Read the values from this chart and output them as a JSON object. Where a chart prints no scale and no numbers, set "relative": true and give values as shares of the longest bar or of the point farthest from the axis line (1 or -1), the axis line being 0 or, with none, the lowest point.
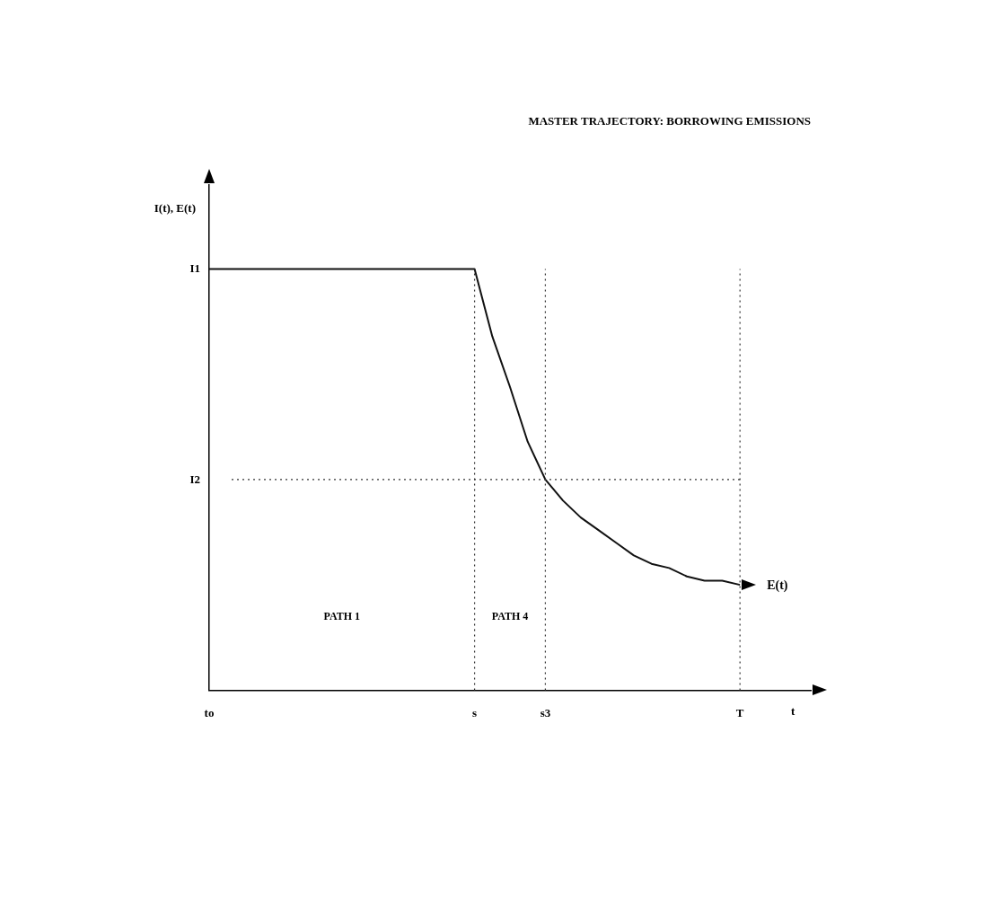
{
  "chart_data": {
    "type": "line",
    "title": "MASTER TRAJECTORY: BORROWING EMISSIONS",
    "xlabel": "t",
    "ylabel": "I(t), E(t)",
    "relative": true,
    "categories": [
      "to",
      null,
      null,
      null,
      null,
      null,
      null,
      null,
      null,
      null,
      null,
      null,
      null,
      null,
      null,
      "s",
      null,
      null,
      null,
      "s3",
      null,
      null,
      null,
      null,
      null,
      null,
      null,
      null,
      null,
      null,
      "T",
      null,
      null,
      null,
      null
    ],
    "series": [
      {
        "name": "E(t)",
        "color": "#111111",
        "values": [
          1,
          1,
          1,
          1,
          1,
          1,
          1,
          1,
          1,
          1,
          1,
          1,
          1,
          1,
          1,
          1,
          0.84,
          0.72,
          0.59,
          0.5,
          0.45,
          0.41,
          0.38,
          0.35,
          0.32,
          0.3,
          0.29,
          0.27,
          0.26,
          0.26,
          0.25,
          null,
          null,
          null,
          null
        ]
      }
    ],
    "ref_lines": [
      {
        "axis": "y",
        "value": 0.5,
        "label": "I2",
        "line_style": "dotted",
        "color": "#333333"
      },
      {
        "axis": "x",
        "value": "s",
        "label": null,
        "line_style": "dotted",
        "color": "#333333"
      },
      {
        "axis": "x",
        "value": "s3",
        "label": null,
        "line_style": "dotted",
        "color": "#333333"
      },
      {
        "axis": "x",
        "value": "T",
        "label": null,
        "line_style": "dotted",
        "color": "#333333"
      }
    ],
    "annotations": [
      {
        "text": "I1",
        "x": "to",
        "y": 1
      },
      "PATH 1",
      "PATH 4"
    ],
    "grid": false,
    "legend": false,
    "marker": "none",
    "line_style": "solid"
  }
}
